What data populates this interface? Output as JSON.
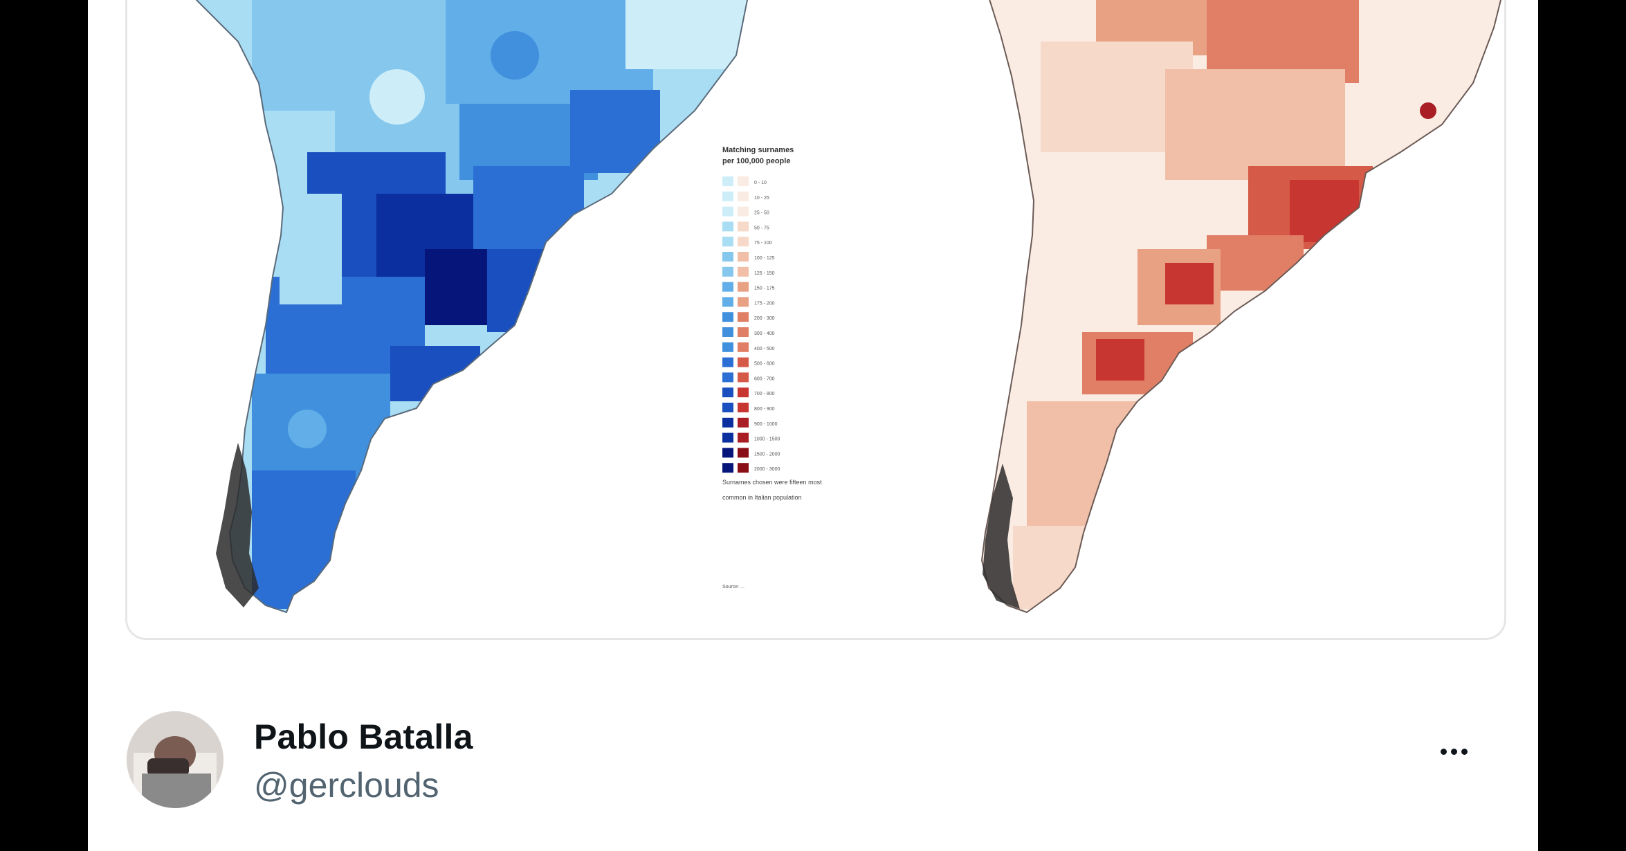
{
  "colors": {
    "page_background": "#000000",
    "card_background": "#ffffff",
    "name": "#0f1419",
    "handle": "#536471",
    "blue_scale": [
      "#cdeef8",
      "#a9ddf3",
      "#86c7ee",
      "#62aee8",
      "#4090de",
      "#2b6fd4",
      "#1a4fc0",
      "#0b2f9e",
      "#05157a"
    ],
    "red_scale": [
      "#faece3",
      "#f7d9c9",
      "#f1bfa7",
      "#e9a184",
      "#e07f66",
      "#d65a48",
      "#c73631",
      "#a91e24",
      "#8a0e15"
    ]
  },
  "tweet": {
    "media": {
      "kind": "two-choropleth-maps",
      "legend": {
        "title_line1": "Matching surnames",
        "title_line2": "per 100,000 people",
        "ranges": [
          "0 - 10",
          "10 - 25",
          "25 - 50",
          "50 - 75",
          "75 - 100",
          "100 - 125",
          "125 - 150",
          "150 - 175",
          "175 - 200",
          "200 - 300",
          "300 - 400",
          "400 - 500",
          "500 - 600",
          "600 - 700",
          "700 - 800",
          "800 - 900",
          "900 - 1000",
          "1000 - 1500",
          "1500 - 2000",
          "2000 - 3000"
        ],
        "note_line1": "Surnames chosen were fifteen most",
        "note_line2": "common in Italian population",
        "source_label": "Source: ..."
      }
    },
    "author": {
      "display_name": "Pablo Batalla",
      "handle": "@gerclouds",
      "avatar_icon": "profile-photo"
    },
    "more_icon": "more-horizontal-icon"
  }
}
